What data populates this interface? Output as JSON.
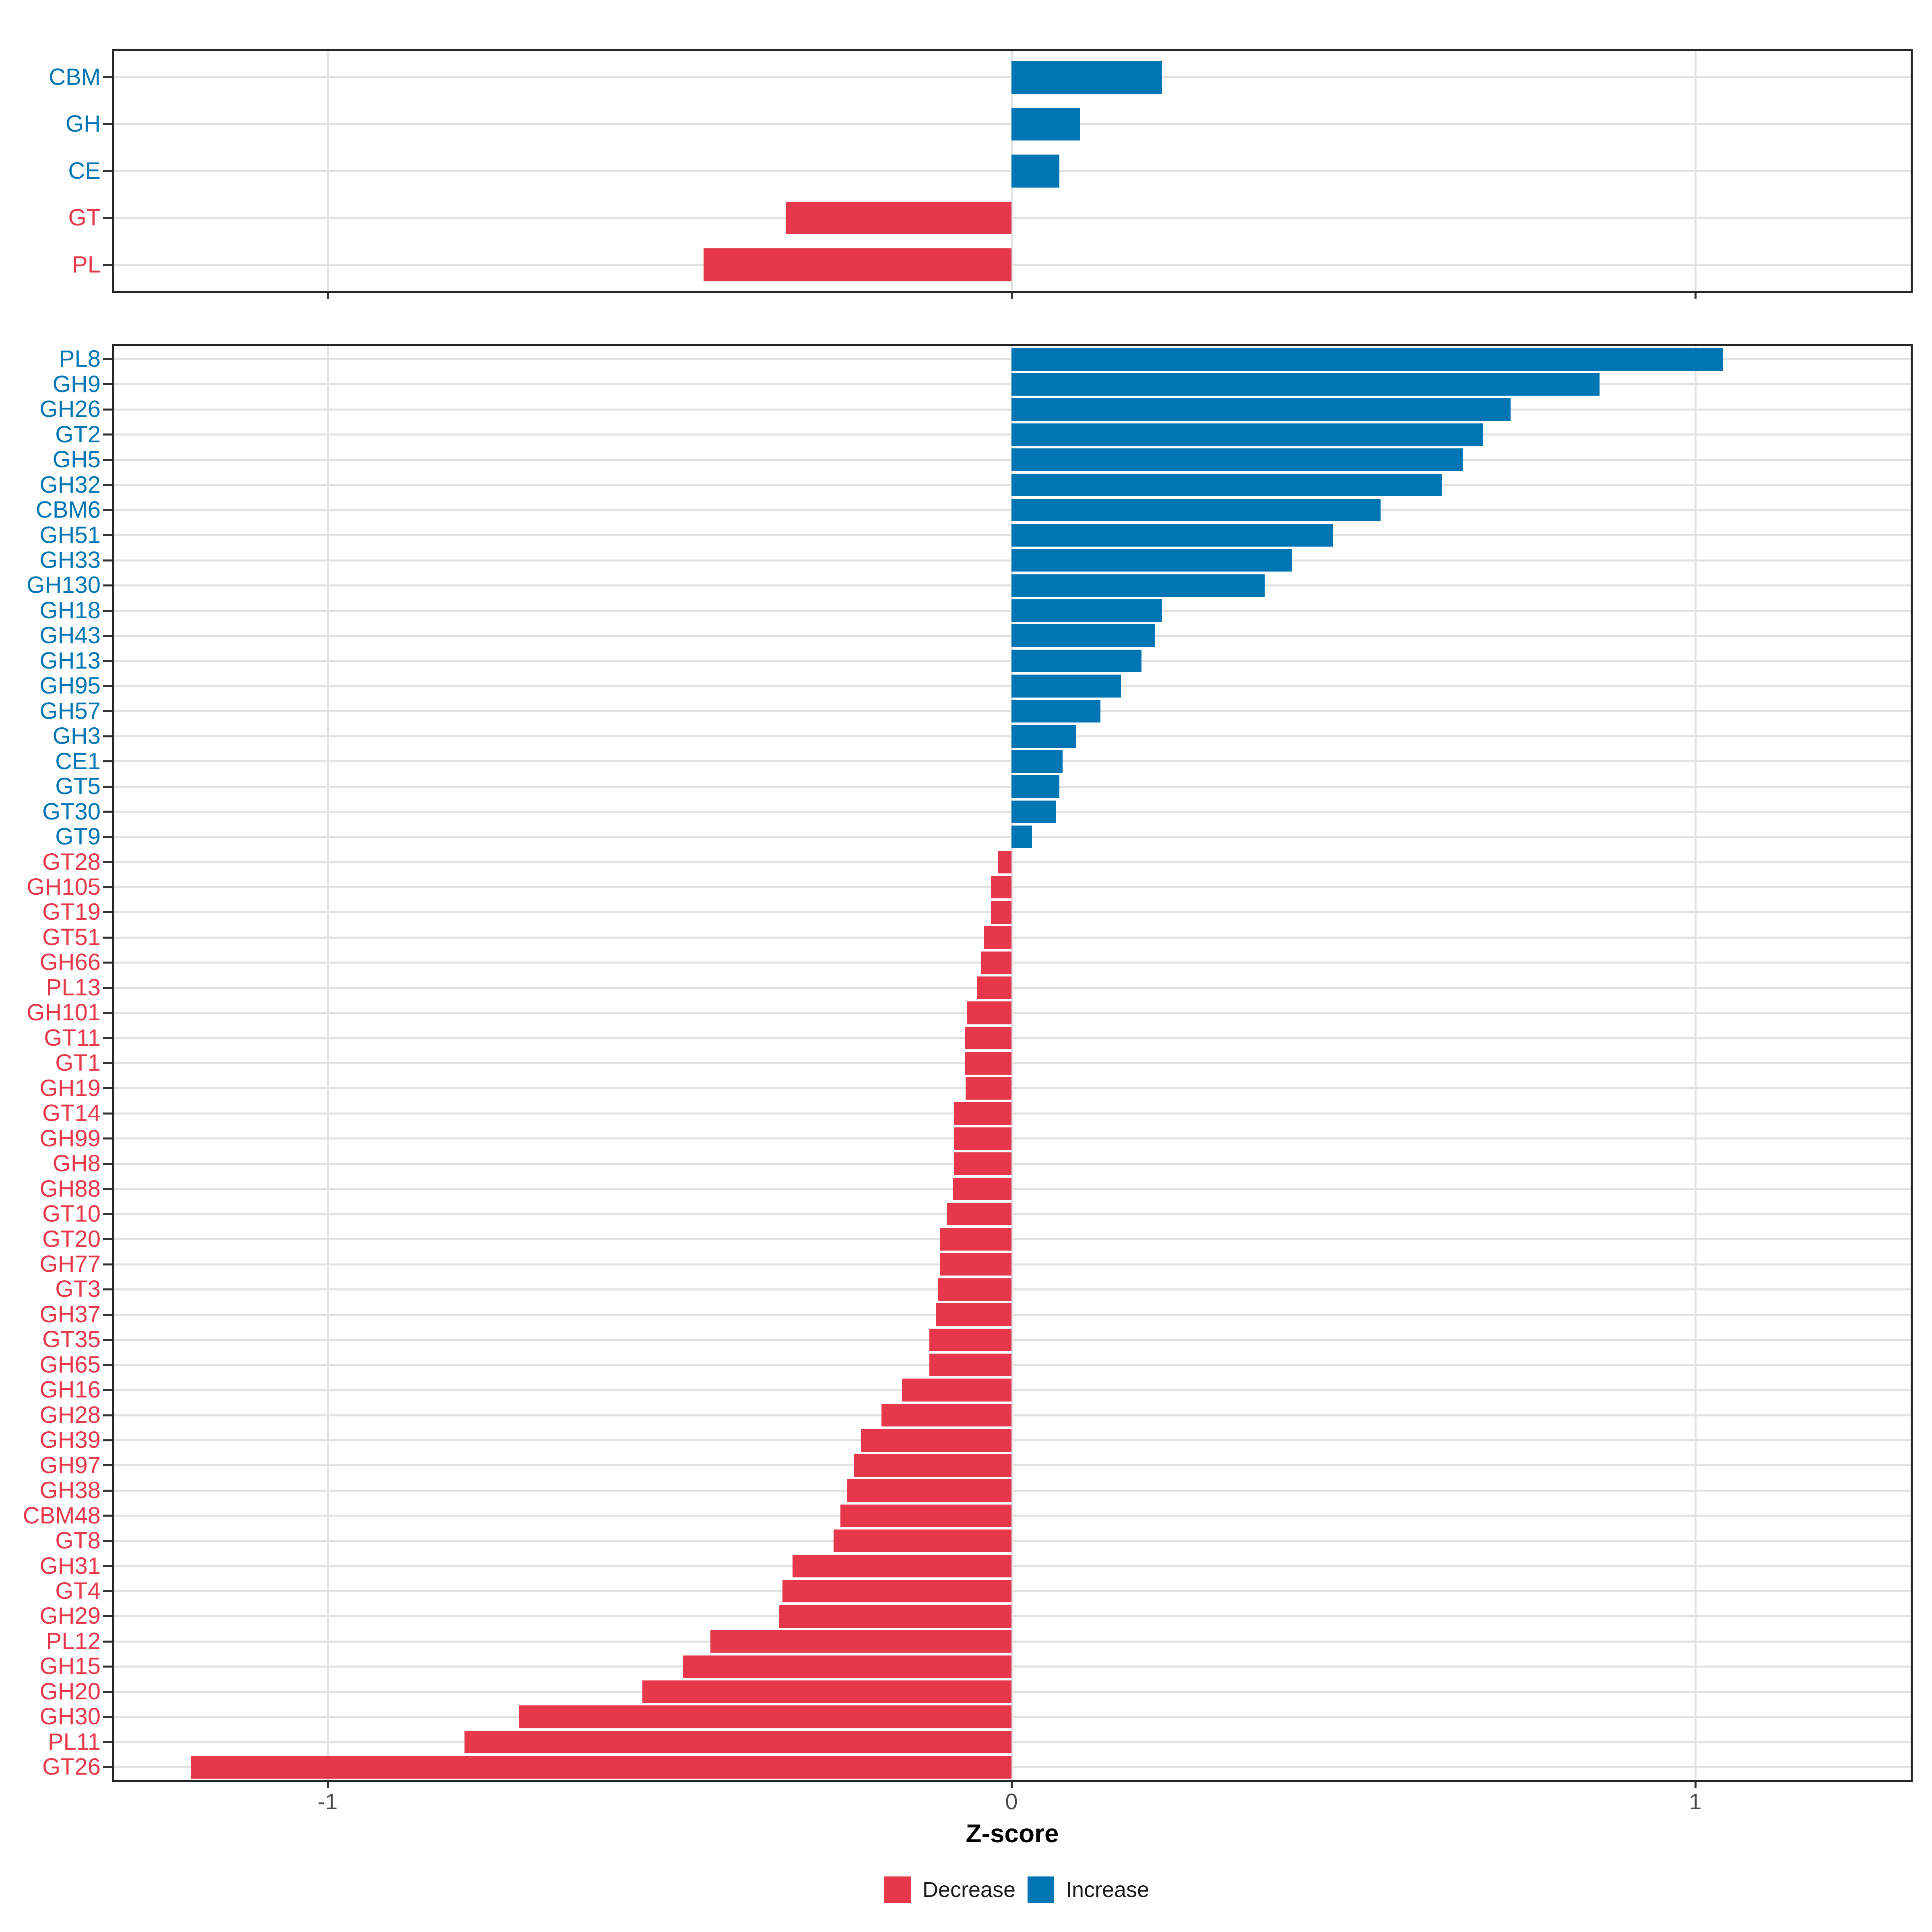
{
  "axis": {
    "x_title": "Z-score",
    "x_tick_labels": [
      "-1",
      "0",
      "1"
    ],
    "x_tick_values": [
      -1,
      0,
      1
    ]
  },
  "legend": {
    "items": [
      {
        "label": "Decrease",
        "color": "#E6384A"
      },
      {
        "label": "Increase",
        "color": "#0075B4"
      }
    ]
  },
  "colors": {
    "increase": "#0075B4",
    "decrease": "#E6384A",
    "grid": "#E2E2E2",
    "panel_border": "#262626",
    "tick": "#333333",
    "axis_text": "#4A4A4A"
  },
  "chart_data": [
    {
      "type": "bar",
      "orientation": "horizontal",
      "panel": "cazyme-classes",
      "categories": [
        "CBM",
        "GH",
        "CE",
        "GT",
        "PL"
      ],
      "values": [
        0.22,
        0.1,
        0.07,
        -0.33,
        -0.45
      ],
      "series_coloring": {
        "positive": "Increase",
        "negative": "Decrease"
      },
      "xlabel": "Z-score",
      "xlim": [
        -1.32,
        1.32
      ],
      "xticks": [
        -1,
        0,
        1
      ],
      "grid": true,
      "legend_position": "bottom"
    },
    {
      "type": "bar",
      "orientation": "horizontal",
      "panel": "cazyme-families",
      "categories": [
        "PL8",
        "GH9",
        "GH26",
        "GT2",
        "GH5",
        "GH32",
        "CBM6",
        "GH51",
        "GH33",
        "GH130",
        "GH18",
        "GH43",
        "GH13",
        "GH95",
        "GH57",
        "GH3",
        "CE1",
        "GT5",
        "GT30",
        "GT9",
        "GT28",
        "GH105",
        "GT19",
        "GT51",
        "GH66",
        "PL13",
        "GH101",
        "GT11",
        "GT1",
        "GH19",
        "GT14",
        "GH99",
        "GH8",
        "GH88",
        "GT10",
        "GT20",
        "GH77",
        "GT3",
        "GH37",
        "GT35",
        "GH65",
        "GH16",
        "GH28",
        "GH39",
        "GH97",
        "GH38",
        "CBM48",
        "GT8",
        "GH31",
        "GT4",
        "GH29",
        "PL12",
        "GH15",
        "GH20",
        "GH30",
        "PL11",
        "GT26"
      ],
      "values": [
        1.04,
        0.86,
        0.73,
        0.69,
        0.66,
        0.63,
        0.54,
        0.47,
        0.41,
        0.37,
        0.22,
        0.21,
        0.19,
        0.16,
        0.13,
        0.095,
        0.075,
        0.07,
        0.065,
        0.03,
        -0.02,
        -0.03,
        -0.03,
        -0.04,
        -0.045,
        -0.05,
        -0.065,
        -0.068,
        -0.068,
        -0.067,
        -0.084,
        -0.084,
        -0.084,
        -0.086,
        -0.095,
        -0.105,
        -0.105,
        -0.108,
        -0.11,
        -0.12,
        -0.12,
        -0.16,
        -0.19,
        -0.22,
        -0.23,
        -0.24,
        -0.25,
        -0.26,
        -0.32,
        -0.335,
        -0.34,
        -0.44,
        -0.48,
        -0.54,
        -0.72,
        -0.8,
        -1.2
      ],
      "series_coloring": {
        "positive": "Increase",
        "negative": "Decrease"
      },
      "xlabel": "Z-score",
      "xlim": [
        -1.32,
        1.32
      ],
      "xticks": [
        -1,
        0,
        1
      ],
      "grid": true,
      "legend_position": "bottom"
    }
  ]
}
